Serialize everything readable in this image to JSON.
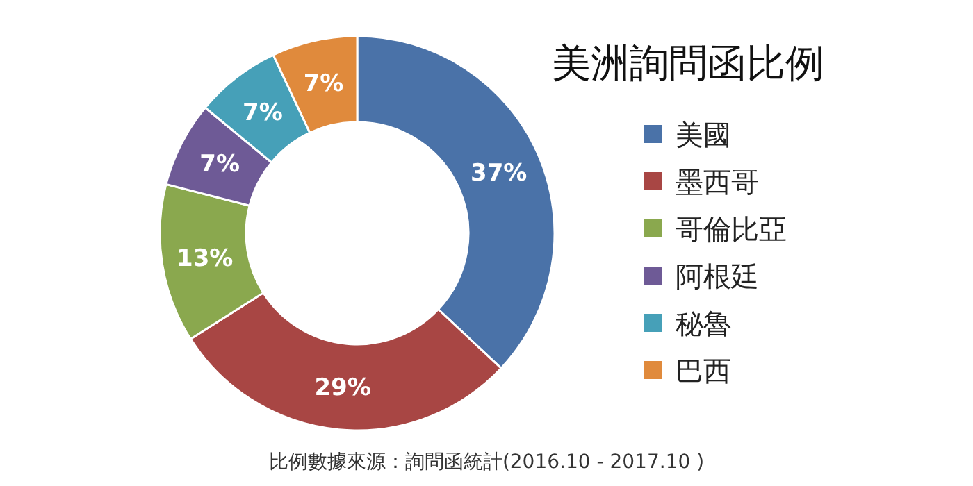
{
  "chart_data": {
    "type": "donut",
    "title": "美洲詢問函比例",
    "categories": [
      "美國",
      "墨西哥",
      "哥倫比亞",
      "阿根廷",
      "秘魯",
      "巴西"
    ],
    "values": [
      37,
      29,
      13,
      7,
      7,
      7
    ],
    "colors": [
      "#4a72a8",
      "#a84644",
      "#8aa84e",
      "#6e5a96",
      "#46a0b8",
      "#e08a3c"
    ],
    "value_labels": [
      "37%",
      "29%",
      "13%",
      "7%",
      "7%",
      "7%"
    ],
    "legend": "right",
    "annotations": [
      "比例數據來源：詢問函統計(2016.10 - 2017.10 )"
    ]
  }
}
